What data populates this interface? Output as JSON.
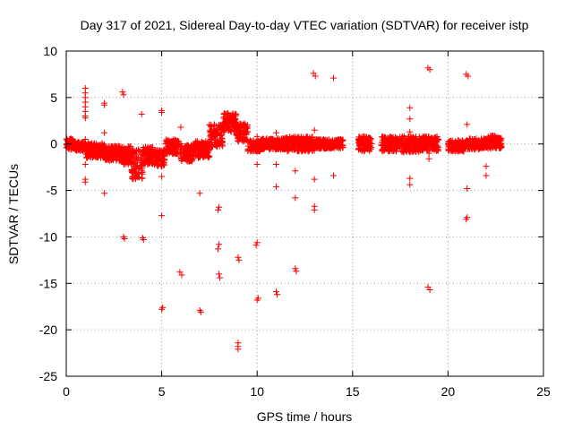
{
  "chart_data": {
    "type": "scatter",
    "title": "Day 317 of 2021, Sidereal Day-to-day VTEC variation (SDTVAR) for receiver istp",
    "xlabel": "GPS time / hours",
    "ylabel": "SDTVAR / TECUs",
    "xlim": [
      0,
      25
    ],
    "ylim": [
      -25,
      10
    ],
    "xticks": [
      0,
      5,
      10,
      15,
      20,
      25
    ],
    "yticks": [
      10,
      5,
      0,
      -5,
      -10,
      -15,
      -20,
      -25
    ],
    "grid": true,
    "marker": "+",
    "color": "#ff0000",
    "series": [
      {
        "name": "SDTVAR",
        "band_segments": [
          {
            "x_start": 0.0,
            "x_end": 0.5,
            "y_center": 0.0,
            "spread": 0.6
          },
          {
            "x_start": 0.5,
            "x_end": 1.0,
            "y_center": -0.3,
            "spread": 0.5
          },
          {
            "x_start": 1.0,
            "x_end": 2.0,
            "y_center": -0.7,
            "spread": 0.8
          },
          {
            "x_start": 2.0,
            "x_end": 3.0,
            "y_center": -1.0,
            "spread": 0.8
          },
          {
            "x_start": 3.0,
            "x_end": 3.4,
            "y_center": -1.2,
            "spread": 1.0
          },
          {
            "x_start": 3.4,
            "x_end": 4.0,
            "y_center": -2.2,
            "spread": 1.6
          },
          {
            "x_start": 4.0,
            "x_end": 4.6,
            "y_center": -1.2,
            "spread": 1.0
          },
          {
            "x_start": 4.6,
            "x_end": 5.2,
            "y_center": -1.5,
            "spread": 0.9
          },
          {
            "x_start": 5.2,
            "x_end": 6.0,
            "y_center": -0.3,
            "spread": 0.8
          },
          {
            "x_start": 6.0,
            "x_end": 6.7,
            "y_center": -1.0,
            "spread": 0.9
          },
          {
            "x_start": 6.7,
            "x_end": 7.5,
            "y_center": -0.6,
            "spread": 0.9
          },
          {
            "x_start": 7.5,
            "x_end": 8.2,
            "y_center": 0.9,
            "spread": 1.2
          },
          {
            "x_start": 8.2,
            "x_end": 8.9,
            "y_center": 2.3,
            "spread": 1.0
          },
          {
            "x_start": 8.9,
            "x_end": 9.5,
            "y_center": 1.2,
            "spread": 1.0
          },
          {
            "x_start": 9.5,
            "x_end": 10.2,
            "y_center": -0.2,
            "spread": 0.6
          },
          {
            "x_start": 10.2,
            "x_end": 11.5,
            "y_center": 0.0,
            "spread": 0.6
          },
          {
            "x_start": 11.5,
            "x_end": 13.0,
            "y_center": 0.0,
            "spread": 0.8
          },
          {
            "x_start": 13.0,
            "x_end": 14.5,
            "y_center": 0.0,
            "spread": 0.5
          },
          {
            "x_start": 15.3,
            "x_end": 16.0,
            "y_center": 0.0,
            "spread": 0.8
          },
          {
            "x_start": 16.5,
            "x_end": 17.5,
            "y_center": 0.0,
            "spread": 0.8
          },
          {
            "x_start": 17.5,
            "x_end": 18.5,
            "y_center": 0.0,
            "spread": 0.9
          },
          {
            "x_start": 18.5,
            "x_end": 19.5,
            "y_center": 0.0,
            "spread": 0.8
          },
          {
            "x_start": 20.0,
            "x_end": 21.0,
            "y_center": -0.2,
            "spread": 0.6
          },
          {
            "x_start": 21.0,
            "x_end": 22.0,
            "y_center": 0.0,
            "spread": 0.6
          },
          {
            "x_start": 22.0,
            "x_end": 22.8,
            "y_center": 0.2,
            "spread": 0.7
          }
        ],
        "points": [
          [
            1.0,
            6.0
          ],
          [
            1.0,
            5.5
          ],
          [
            1.0,
            5.0
          ],
          [
            1.0,
            4.5
          ],
          [
            1.0,
            4.0
          ],
          [
            1.0,
            3.5
          ],
          [
            1.0,
            3.0
          ],
          [
            1.0,
            2.8
          ],
          [
            1.0,
            0.5
          ],
          [
            1.0,
            -0.8
          ],
          [
            1.0,
            -2.2
          ],
          [
            1.0,
            -3.8
          ],
          [
            1.0,
            -4.1
          ],
          [
            2.0,
            4.4
          ],
          [
            2.0,
            4.2
          ],
          [
            2.0,
            1.2
          ],
          [
            2.0,
            -5.3
          ],
          [
            2.95,
            5.6
          ],
          [
            3.0,
            5.3
          ],
          [
            3.0,
            -10.0
          ],
          [
            3.05,
            -10.2
          ],
          [
            3.95,
            3.2
          ],
          [
            4.0,
            -10.1
          ],
          [
            4.05,
            -10.3
          ],
          [
            5.0,
            3.6
          ],
          [
            5.0,
            3.4
          ],
          [
            5.0,
            -3.5
          ],
          [
            5.0,
            -7.7
          ],
          [
            5.0,
            -17.8
          ],
          [
            5.05,
            -17.6
          ],
          [
            6.0,
            1.8
          ],
          [
            5.95,
            -13.8
          ],
          [
            6.05,
            -14.1
          ],
          [
            7.0,
            -5.3
          ],
          [
            7.0,
            -17.9
          ],
          [
            7.05,
            -18.1
          ],
          [
            8.0,
            -6.8
          ],
          [
            7.95,
            -7.1
          ],
          [
            8.0,
            -10.8
          ],
          [
            7.95,
            -11.3
          ],
          [
            8.0,
            -14.0
          ],
          [
            8.05,
            -14.4
          ],
          [
            9.0,
            -12.2
          ],
          [
            9.05,
            -12.5
          ],
          [
            9.0,
            -21.4
          ],
          [
            9.0,
            -21.8
          ],
          [
            9.0,
            -22.1
          ],
          [
            10.0,
            0.8
          ],
          [
            10.0,
            -2.2
          ],
          [
            10.0,
            -10.6
          ],
          [
            9.95,
            -10.9
          ],
          [
            10.0,
            -16.8
          ],
          [
            10.05,
            -16.6
          ],
          [
            11.0,
            1.2
          ],
          [
            11.0,
            -2.2
          ],
          [
            11.0,
            -4.6
          ],
          [
            11.0,
            -15.9
          ],
          [
            11.05,
            -16.2
          ],
          [
            12.0,
            -2.9
          ],
          [
            12.0,
            -5.8
          ],
          [
            12.0,
            -13.4
          ],
          [
            12.05,
            -13.7
          ],
          [
            12.95,
            7.6
          ],
          [
            13.05,
            7.3
          ],
          [
            13.0,
            1.5
          ],
          [
            13.0,
            -3.8
          ],
          [
            13.0,
            -6.7
          ],
          [
            13.0,
            -7.1
          ],
          [
            14.0,
            7.1
          ],
          [
            14.0,
            -3.4
          ],
          [
            18.0,
            3.9
          ],
          [
            18.0,
            2.7
          ],
          [
            18.0,
            1.3
          ],
          [
            18.0,
            -3.7
          ],
          [
            18.0,
            -4.4
          ],
          [
            18.95,
            8.2
          ],
          [
            19.05,
            8.0
          ],
          [
            19.0,
            -1.0
          ],
          [
            19.0,
            -1.6
          ],
          [
            18.95,
            -15.4
          ],
          [
            19.05,
            -15.7
          ],
          [
            20.95,
            7.5
          ],
          [
            21.05,
            7.3
          ],
          [
            21.0,
            2.1
          ],
          [
            21.0,
            -4.8
          ],
          [
            21.0,
            -7.9
          ],
          [
            20.95,
            -8.1
          ],
          [
            22.0,
            -2.4
          ],
          [
            22.0,
            -3.4
          ]
        ]
      }
    ]
  }
}
